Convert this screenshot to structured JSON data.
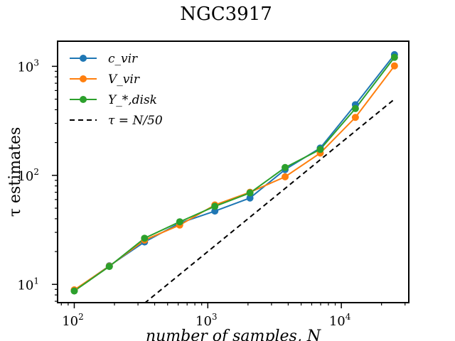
{
  "chart_data": {
    "type": "line",
    "title": "NGC3917",
    "xlabel": "number of samples, N",
    "ylabel": "τ estimates",
    "xscale": "log",
    "yscale": "log",
    "xlim": [
      75,
      32000
    ],
    "ylim": [
      6.8,
      1700
    ],
    "x_ticks": [
      {
        "value": 100,
        "label": "10",
        "exp": "2"
      },
      {
        "value": 1000,
        "label": "10",
        "exp": "3"
      },
      {
        "value": 10000,
        "label": "10",
        "exp": "4"
      }
    ],
    "y_ticks": [
      {
        "value": 10,
        "label": "10",
        "exp": "1"
      },
      {
        "value": 100,
        "label": "10",
        "exp": "2"
      },
      {
        "value": 1000,
        "label": "10",
        "exp": "3"
      }
    ],
    "grid": false,
    "legend_position": "top-left",
    "x": [
      100,
      183,
      336,
      616,
      1129,
      2069,
      3793,
      6952,
      12743,
      25000
    ],
    "series": [
      {
        "name": "c_vir",
        "color": "#1f77b4",
        "values": [
          8.8,
          14.8,
          24.5,
          36.5,
          47,
          62,
          113,
          178,
          445,
          1280
        ]
      },
      {
        "name": "V_vir",
        "color": "#ff7f0e",
        "values": [
          8.9,
          14.7,
          25.5,
          35,
          53.5,
          70,
          97,
          160,
          340,
          1010
        ]
      },
      {
        "name": "Υ_*,disk",
        "color": "#2ca02c",
        "values": [
          8.7,
          14.6,
          26.5,
          37.5,
          52,
          69,
          118,
          173,
          410,
          1210
        ]
      }
    ],
    "reference_line": {
      "name": "τ = N/50",
      "color": "#000000",
      "style": "dashed",
      "x": [
        336,
        25000
      ],
      "values": [
        6.72,
        500
      ]
    }
  }
}
